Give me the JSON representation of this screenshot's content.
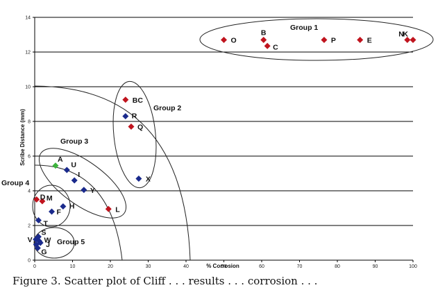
{
  "chart_data": {
    "type": "scatter",
    "xlabel": "% Corrosion",
    "ylabel": "Scribe Distance (mm)",
    "xlim": [
      0,
      100
    ],
    "ylim": [
      0,
      14
    ],
    "xticks": [
      "0",
      "10",
      "20",
      "30",
      "40",
      "50",
      "60",
      "70",
      "80",
      "90",
      "100"
    ],
    "yticks": [
      "0",
      "2",
      "4",
      "6",
      "8",
      "10",
      "12",
      "14"
    ],
    "grid": "horizontal",
    "colors": {
      "red": "#c0141e",
      "blue": "#1a2a8c",
      "green": "#3cb43c",
      "grid": "#000000"
    },
    "points": [
      {
        "label": "O",
        "x": 50,
        "y": 12.7,
        "color": "red"
      },
      {
        "label": "B",
        "x": 60.5,
        "y": 12.7,
        "color": "red"
      },
      {
        "label": "C",
        "x": 61.5,
        "y": 12.35,
        "color": "red"
      },
      {
        "label": "P",
        "x": 76.5,
        "y": 12.7,
        "color": "red"
      },
      {
        "label": "E",
        "x": 86,
        "y": 12.7,
        "color": "red"
      },
      {
        "label": "N",
        "x": 98.5,
        "y": 12.7,
        "color": "red"
      },
      {
        "label": "K",
        "x": 100,
        "y": 12.7,
        "color": "red"
      },
      {
        "label": "BC",
        "x": 24,
        "y": 9.25,
        "color": "red"
      },
      {
        "label": "R",
        "x": 24,
        "y": 8.3,
        "color": "blue"
      },
      {
        "label": "Q",
        "x": 25.5,
        "y": 7.7,
        "color": "red"
      },
      {
        "label": "X",
        "x": 27.5,
        "y": 4.7,
        "color": "blue"
      },
      {
        "label": "A",
        "x": 5.5,
        "y": 5.45,
        "color": "green"
      },
      {
        "label": "U",
        "x": 8.5,
        "y": 5.2,
        "color": "blue"
      },
      {
        "label": "I",
        "x": 10.5,
        "y": 4.6,
        "color": "blue"
      },
      {
        "label": "Y",
        "x": 13,
        "y": 4.05,
        "color": "blue"
      },
      {
        "label": "L",
        "x": 19.5,
        "y": 2.95,
        "color": "red"
      },
      {
        "label": "D",
        "x": 0.5,
        "y": 3.5,
        "color": "red"
      },
      {
        "label": "M",
        "x": 2,
        "y": 3.4,
        "color": "red"
      },
      {
        "label": "H",
        "x": 7.5,
        "y": 3.1,
        "color": "blue"
      },
      {
        "label": "F",
        "x": 4.5,
        "y": 2.8,
        "color": "blue"
      },
      {
        "label": "T",
        "x": 1,
        "y": 2.3,
        "color": "blue"
      },
      {
        "label": "S",
        "x": 1,
        "y": 1.35,
        "color": "blue"
      },
      {
        "label": "V",
        "x": 0.3,
        "y": 1.2,
        "color": "blue"
      },
      {
        "label": "W",
        "x": 1.2,
        "y": 1.1,
        "color": "blue"
      },
      {
        "label": "",
        "x": 0.4,
        "y": 0.9,
        "color": "blue"
      },
      {
        "label": "J",
        "x": 1.5,
        "y": 1.0,
        "color": "blue"
      },
      {
        "label": "G",
        "x": 0.8,
        "y": 0.7,
        "color": "blue"
      }
    ],
    "annotations": [
      "Group 1",
      "Group 2",
      "Group 3",
      "Group 4",
      "Group 5"
    ]
  },
  "caption": "Figure 3. Scatter plot of Cliff . . . results . . . corrosion . . ."
}
